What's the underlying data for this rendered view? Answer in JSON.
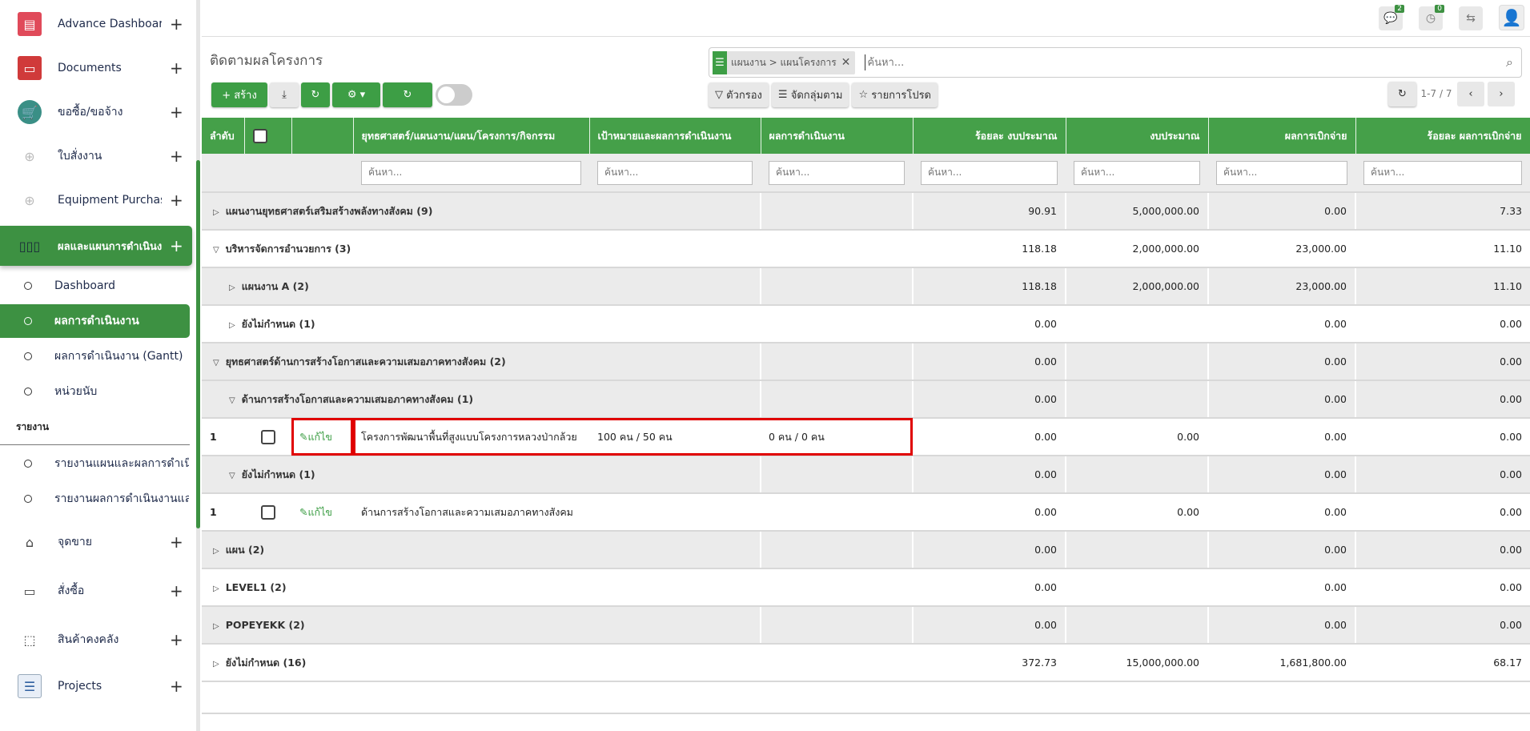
{
  "sidebar": {
    "items": [
      {
        "label": "Advance Dashboard",
        "icon": "dashboard-icon",
        "color": "#e04a5a"
      },
      {
        "label": "Documents",
        "icon": "folder-icon",
        "color": "#d03a3a"
      },
      {
        "label": "ขอซื้อ/ขอจ้าง",
        "icon": "shopping-cart-icon",
        "color": "#3a8f86"
      },
      {
        "label": "ใบสั่งงาน",
        "icon": "camera-add-icon",
        "color": "#cccccc"
      },
      {
        "label": "Equipment Purchase Request",
        "icon": "camera-add-icon",
        "color": "#cccccc"
      },
      {
        "label": "ผลและแผนการดำเนินงาน",
        "icon": "bar-chart-icon",
        "color": "#3d9142"
      }
    ],
    "sub_items": [
      "Dashboard",
      "ผลการดำเนินงาน",
      "ผลการดำเนินงาน (Gantt)",
      "หน่วยนับ"
    ],
    "report_header": "รายงาน",
    "report_items": [
      "รายงานแผนและผลการดำเนินงาน",
      "รายงานผลการดำเนินงานและการเบิกจ่าย"
    ],
    "bottom_items": [
      {
        "label": "จุดขาย",
        "icon": "store-icon"
      },
      {
        "label": "สั่งซื้อ",
        "icon": "credit-card-icon"
      },
      {
        "label": "สินค้าคงคลัง",
        "icon": "box-icon"
      },
      {
        "label": "Projects",
        "icon": "projects-icon"
      }
    ]
  },
  "topbar": {
    "messages_count": "2",
    "activities_count": "0"
  },
  "page": {
    "title": "ติดตามผลโครงการ"
  },
  "toolbar": {
    "create": "+ สร้าง",
    "filter": "ตัวกรอง",
    "group_by": "จัดกลุ่มตาม",
    "favorites": "รายการโปรด",
    "pager": "1-7 / 7"
  },
  "search": {
    "facet": "แผนงาน > แผนโครงการ",
    "placeholder": "ค้นหา..."
  },
  "table": {
    "columns": [
      "ลำดับ",
      "",
      "",
      "ยุทธศาสตร์/แผนงาน/แผน/โครงการ/กิจกรรม",
      "เป้าหมายและผลการดำเนินงาน",
      "ผลการดำเนินงาน",
      "ร้อยละ งบประมาณ",
      "งบประมาณ",
      "ผลการเบิกจ่าย",
      "ร้อยละ ผลการเบิกจ่าย"
    ],
    "filter_placeholder": "ค้นหา...",
    "edit_label": "แก้ไข",
    "rows": [
      {
        "type": "group",
        "label": "แผนงานยุทธศาสตร์เสริมสร้างพลังทางสังคม (9)",
        "level": 0,
        "expanded": false,
        "values": [
          "90.91",
          "5,000,000.00",
          "0.00",
          "7.33"
        ]
      },
      {
        "type": "group",
        "label": "บริหารจัดการอำนวยการ (3)",
        "level": 0,
        "expanded": true,
        "values": [
          "118.18",
          "2,000,000.00",
          "23,000.00",
          "11.10"
        ]
      },
      {
        "type": "group",
        "label": "แผนงาน A (2)",
        "level": 1,
        "expanded": false,
        "values": [
          "118.18",
          "2,000,000.00",
          "23,000.00",
          "11.10"
        ]
      },
      {
        "type": "group",
        "label": "ยังไม่กำหนด (1)",
        "level": 1,
        "expanded": false,
        "values": [
          "0.00",
          "",
          "0.00",
          "0.00"
        ]
      },
      {
        "type": "group",
        "label": "ยุทธศาสตร์ด้านการสร้างโอกาสและความเสมอภาคทางสังคม (2)",
        "level": 0,
        "expanded": true,
        "values": [
          "0.00",
          "",
          "0.00",
          "0.00"
        ]
      },
      {
        "type": "group",
        "label": "ด้านการสร้างโอกาสและความเสมอภาคทางสังคม (1)",
        "level": 1,
        "expanded": true,
        "values": [
          "0.00",
          "",
          "0.00",
          "0.00"
        ]
      },
      {
        "type": "record",
        "index": "1",
        "name": "โครงการพัฒนาพื้นที่สูงแบบโครงการหลวงป่ากล้วย",
        "target": "100 คน / 50 คน",
        "result": "0 คน / 0 คน",
        "values": [
          "0.00",
          "0.00",
          "0.00",
          "0.00"
        ],
        "highlighted": true
      },
      {
        "type": "group",
        "label": "ยังไม่กำหนด (1)",
        "level": 1,
        "expanded": true,
        "values": [
          "0.00",
          "",
          "0.00",
          "0.00"
        ]
      },
      {
        "type": "record",
        "index": "1",
        "name": "ด้านการสร้างโอกาสและความเสมอภาคทางสังคม",
        "target": "",
        "result": "",
        "values": [
          "0.00",
          "0.00",
          "0.00",
          "0.00"
        ]
      },
      {
        "type": "group",
        "label": "แผน (2)",
        "level": 0,
        "expanded": false,
        "values": [
          "0.00",
          "",
          "0.00",
          "0.00"
        ]
      },
      {
        "type": "group",
        "label": "LEVEL1 (2)",
        "level": 0,
        "expanded": false,
        "values": [
          "0.00",
          "",
          "0.00",
          "0.00"
        ]
      },
      {
        "type": "group",
        "label": "POPEYEKK (2)",
        "level": 0,
        "expanded": false,
        "values": [
          "0.00",
          "",
          "0.00",
          "0.00"
        ]
      },
      {
        "type": "group",
        "label": "ยังไม่กำหนด (16)",
        "level": 0,
        "expanded": false,
        "values": [
          "372.73",
          "15,000,000.00",
          "1,681,800.00",
          "68.17"
        ]
      }
    ]
  },
  "colors": {
    "primary": "#3d9e45",
    "highlight": "#e00000"
  }
}
